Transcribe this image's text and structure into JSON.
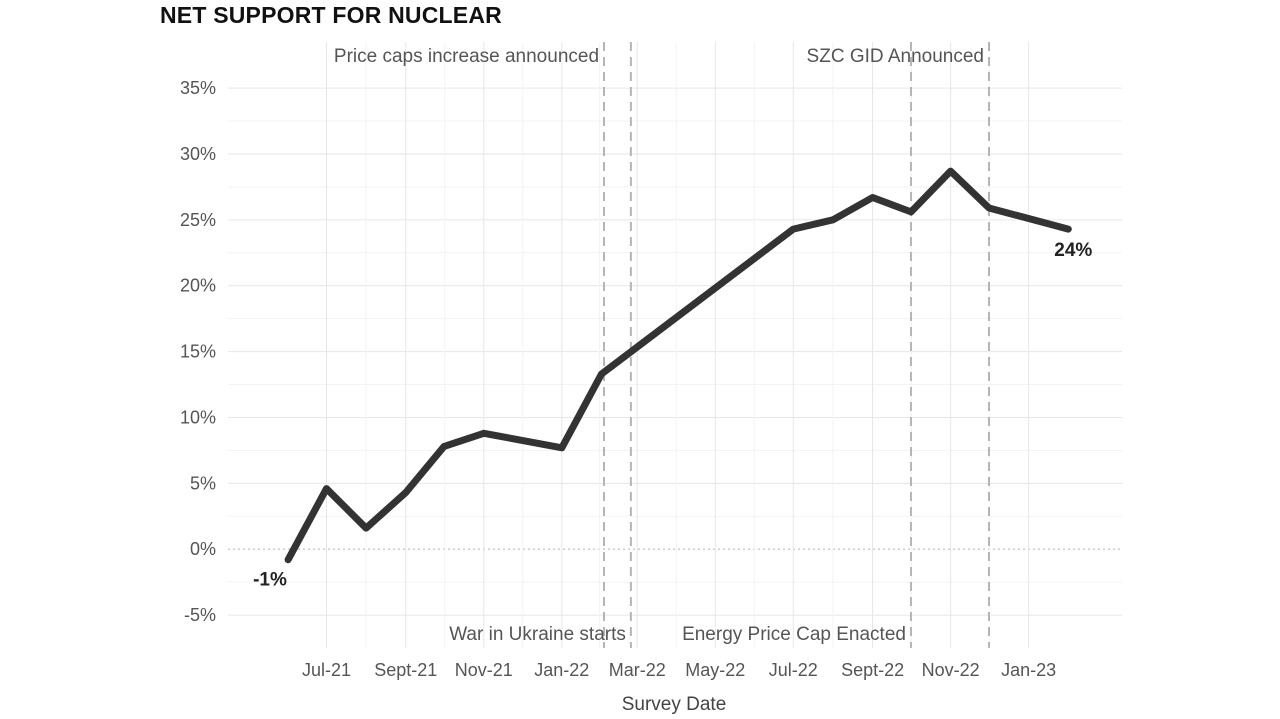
{
  "chart_data": {
    "type": "line",
    "title": "NET SUPPORT FOR NUCLEAR",
    "xlabel": "Survey Date",
    "ylabel": "",
    "ylim": [
      -7.5,
      38.5
    ],
    "yticks": [
      -5,
      0,
      5,
      10,
      15,
      20,
      25,
      30,
      35
    ],
    "ytick_labels": [
      "-5%",
      "0%",
      "5%",
      "10%",
      "15%",
      "20%",
      "25%",
      "30%",
      "35%"
    ],
    "xlim": [
      "2021-04-15",
      "2023-03-15"
    ],
    "xticks": [
      {
        "date": "2021-07-01",
        "label": "Jul-21"
      },
      {
        "date": "2021-09-01",
        "label": "Sept-21"
      },
      {
        "date": "2021-11-01",
        "label": "Nov-21"
      },
      {
        "date": "2022-01-01",
        "label": "Jan-22"
      },
      {
        "date": "2022-03-01",
        "label": "Mar-22"
      },
      {
        "date": "2022-05-01",
        "label": "May-22"
      },
      {
        "date": "2022-07-01",
        "label": "Jul-22"
      },
      {
        "date": "2022-09-01",
        "label": "Sept-22"
      },
      {
        "date": "2022-11-01",
        "label": "Nov-22"
      },
      {
        "date": "2023-01-01",
        "label": "Jan-23"
      }
    ],
    "series": [
      {
        "color": "#333333",
        "points": [
          {
            "x": "2021-06-01",
            "y": -0.8
          },
          {
            "x": "2021-07-01",
            "y": 4.6
          },
          {
            "x": "2021-08-01",
            "y": 1.6
          },
          {
            "x": "2021-09-01",
            "y": 4.3
          },
          {
            "x": "2021-10-01",
            "y": 7.8
          },
          {
            "x": "2021-11-01",
            "y": 8.8
          },
          {
            "x": "2022-01-01",
            "y": 7.7
          },
          {
            "x": "2022-02-01",
            "y": 13.3
          },
          {
            "x": "2022-07-01",
            "y": 24.3
          },
          {
            "x": "2022-08-01",
            "y": 25.0
          },
          {
            "x": "2022-09-01",
            "y": 26.7
          },
          {
            "x": "2022-10-01",
            "y": 25.6
          },
          {
            "x": "2022-11-01",
            "y": 28.7
          },
          {
            "x": "2022-12-01",
            "y": 25.9
          },
          {
            "x": "2023-02-01",
            "y": 24.3
          }
        ]
      }
    ],
    "labels": {
      "start": "-1%",
      "end": "24%"
    },
    "events": [
      {
        "date": "2022-02-03",
        "label": "Price caps increase announced",
        "position": "top"
      },
      {
        "date": "2022-02-24",
        "label": "War in Ukraine starts",
        "position": "bottom"
      },
      {
        "date": "2022-10-01",
        "label": "Energy Price Cap Enacted",
        "position": "bottom"
      },
      {
        "date": "2022-12-01",
        "label": "SZC GID Announced",
        "position": "top"
      }
    ],
    "grid": true,
    "zero_line": "dotted",
    "legend": "none"
  }
}
